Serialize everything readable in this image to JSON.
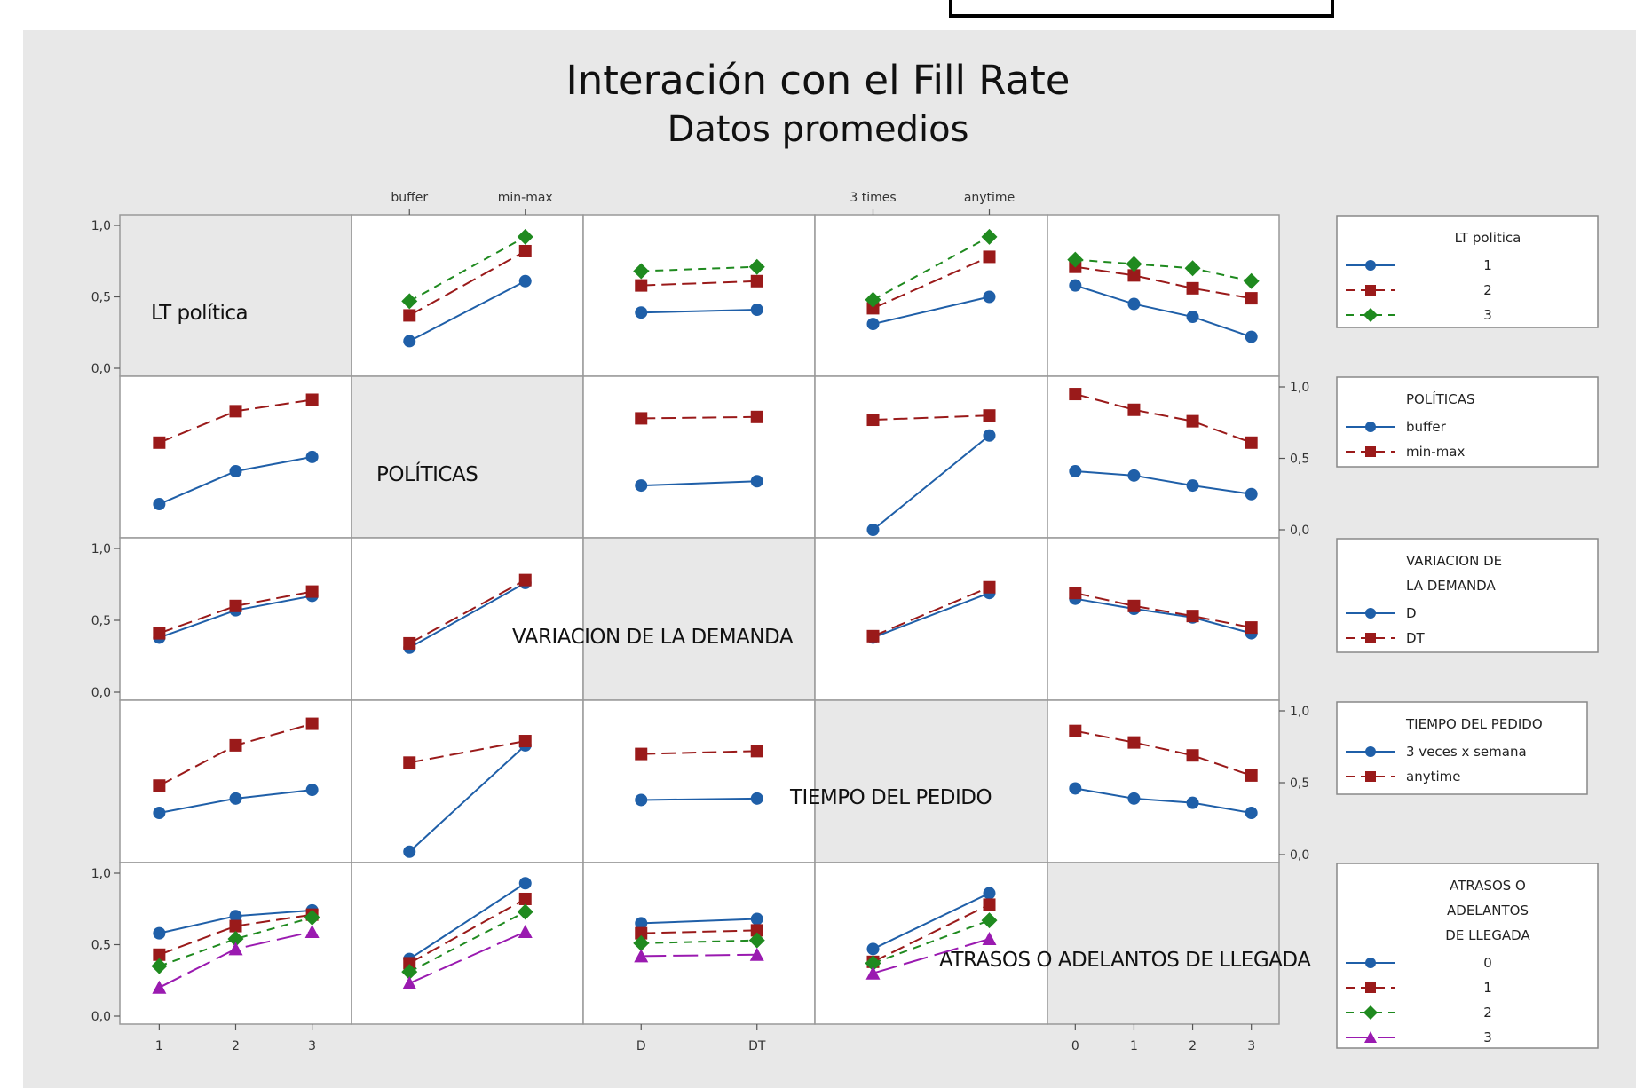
{
  "title": "Interación con el Fill Rate",
  "subtitle": "Datos promedios",
  "chart_data": {
    "type": "line",
    "title": "Interación con el Fill Rate",
    "subtitle": "Datos promedios",
    "ylim": [
      0,
      1
    ],
    "y_ticks": [
      "0,0",
      "0,5",
      "1,0"
    ],
    "factors": [
      {
        "name": "LT política",
        "levels": [
          "1",
          "2",
          "3"
        ],
        "x_ticks": [
          "1",
          "2",
          "3"
        ],
        "legend_title": [
          "LT politica"
        ],
        "legend_labels": [
          "1",
          "2",
          "3"
        ],
        "colors": [
          "#1f5fa8",
          "#9a1a1a",
          "#1f8a1f"
        ],
        "markers": [
          "circle",
          "square",
          "diamond"
        ]
      },
      {
        "name": "POLÍTICAS",
        "levels": [
          "buffer",
          "min-max"
        ],
        "x_ticks": [
          "buffer",
          "min-max"
        ],
        "legend_title": [
          "POLÍTICAS"
        ],
        "legend_labels": [
          "buffer",
          "min-max"
        ],
        "colors": [
          "#1f5fa8",
          "#9a1a1a"
        ],
        "markers": [
          "circle",
          "square"
        ]
      },
      {
        "name": "VARIACION DE LA DEMANDA",
        "levels": [
          "D",
          "DT"
        ],
        "x_ticks": [
          "D",
          "DT"
        ],
        "legend_title": [
          "VARIACION DE",
          "LA DEMANDA"
        ],
        "legend_labels": [
          "D",
          "DT"
        ],
        "colors": [
          "#1f5fa8",
          "#9a1a1a"
        ],
        "markers": [
          "circle",
          "square"
        ]
      },
      {
        "name": "TIEMPO DEL PEDIDO",
        "levels": [
          "3 times",
          "anytime"
        ],
        "x_ticks": [
          "3 times",
          "anytime"
        ],
        "legend_title": [
          "TIEMPO DEL PEDIDO"
        ],
        "legend_labels": [
          "3 veces x semana",
          "anytime"
        ],
        "colors": [
          "#1f5fa8",
          "#9a1a1a"
        ],
        "markers": [
          "circle",
          "square"
        ]
      },
      {
        "name": "ATRASOS O ADELANTOS DE LLEGADA",
        "levels": [
          "0",
          "1",
          "2",
          "3"
        ],
        "x_ticks": [
          "0",
          "1",
          "2",
          "3"
        ],
        "legend_title": [
          "ATRASOS O",
          "ADELANTOS",
          "DE LLEGADA"
        ],
        "legend_labels": [
          "0",
          "1",
          "2",
          "3"
        ],
        "colors": [
          "#1f5fa8",
          "#9a1a1a",
          "#1f8a1f",
          "#9a1ab0"
        ],
        "markers": [
          "circle",
          "square",
          "diamond",
          "triangle"
        ]
      }
    ],
    "cells": [
      {
        "row": 0,
        "col": 1,
        "series": [
          [
            0.19,
            0.61
          ],
          [
            0.37,
            0.82
          ],
          [
            0.47,
            0.92
          ]
        ]
      },
      {
        "row": 0,
        "col": 2,
        "series": [
          [
            0.39,
            0.41
          ],
          [
            0.58,
            0.61
          ],
          [
            0.68,
            0.71
          ]
        ]
      },
      {
        "row": 0,
        "col": 3,
        "series": [
          [
            0.31,
            0.5
          ],
          [
            0.42,
            0.78
          ],
          [
            0.48,
            0.92
          ]
        ]
      },
      {
        "row": 0,
        "col": 4,
        "series": [
          [
            0.58,
            0.45,
            0.36,
            0.22
          ],
          [
            0.71,
            0.65,
            0.56,
            0.49
          ],
          [
            0.76,
            0.73,
            0.7,
            0.61
          ]
        ]
      },
      {
        "row": 1,
        "col": 0,
        "series": [
          [
            0.18,
            0.41,
            0.51
          ],
          [
            0.61,
            0.83,
            0.91
          ]
        ]
      },
      {
        "row": 1,
        "col": 2,
        "series": [
          [
            0.31,
            0.34
          ],
          [
            0.78,
            0.79
          ]
        ]
      },
      {
        "row": 1,
        "col": 3,
        "series": [
          [
            0.0,
            0.66
          ],
          [
            0.77,
            0.8
          ]
        ]
      },
      {
        "row": 1,
        "col": 4,
        "series": [
          [
            0.41,
            0.38,
            0.31,
            0.25
          ],
          [
            0.95,
            0.84,
            0.76,
            0.61
          ]
        ]
      },
      {
        "row": 2,
        "col": 0,
        "series": [
          [
            0.38,
            0.57,
            0.67
          ],
          [
            0.41,
            0.6,
            0.7
          ]
        ]
      },
      {
        "row": 2,
        "col": 1,
        "series": [
          [
            0.31,
            0.76
          ],
          [
            0.34,
            0.78
          ]
        ]
      },
      {
        "row": 2,
        "col": 3,
        "series": [
          [
            0.38,
            0.69
          ],
          [
            0.39,
            0.73
          ]
        ]
      },
      {
        "row": 2,
        "col": 4,
        "series": [
          [
            0.65,
            0.58,
            0.52,
            0.41
          ],
          [
            0.69,
            0.6,
            0.53,
            0.45
          ]
        ]
      },
      {
        "row": 3,
        "col": 0,
        "series": [
          [
            0.29,
            0.39,
            0.45
          ],
          [
            0.48,
            0.76,
            0.91
          ]
        ]
      },
      {
        "row": 3,
        "col": 1,
        "series": [
          [
            0.02,
            0.76
          ],
          [
            0.64,
            0.79
          ]
        ]
      },
      {
        "row": 3,
        "col": 2,
        "series": [
          [
            0.38,
            0.39
          ],
          [
            0.7,
            0.72
          ]
        ]
      },
      {
        "row": 3,
        "col": 4,
        "series": [
          [
            0.46,
            0.39,
            0.36,
            0.29
          ],
          [
            0.86,
            0.78,
            0.69,
            0.55
          ]
        ]
      },
      {
        "row": 4,
        "col": 0,
        "series": [
          [
            0.58,
            0.7,
            0.74
          ],
          [
            0.43,
            0.63,
            0.71
          ],
          [
            0.35,
            0.54,
            0.69
          ],
          [
            0.2,
            0.47,
            0.59
          ]
        ]
      },
      {
        "row": 4,
        "col": 1,
        "series": [
          [
            0.4,
            0.93
          ],
          [
            0.37,
            0.82
          ],
          [
            0.31,
            0.73
          ],
          [
            0.23,
            0.59
          ]
        ]
      },
      {
        "row": 4,
        "col": 2,
        "series": [
          [
            0.65,
            0.68
          ],
          [
            0.58,
            0.6
          ],
          [
            0.51,
            0.53
          ],
          [
            0.42,
            0.43
          ]
        ]
      },
      {
        "row": 4,
        "col": 3,
        "series": [
          [
            0.47,
            0.86
          ],
          [
            0.38,
            0.78
          ],
          [
            0.37,
            0.67
          ],
          [
            0.3,
            0.54
          ]
        ]
      }
    ]
  }
}
